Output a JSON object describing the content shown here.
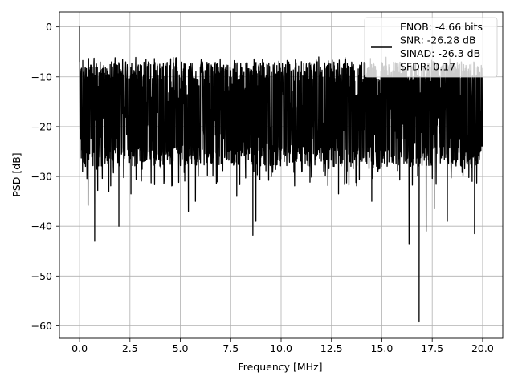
{
  "chart_data": {
    "type": "line",
    "title": "",
    "xlabel": "Frequency [MHz]",
    "ylabel": "PSD [dB]",
    "xlim": [
      -1.0,
      21.0
    ],
    "ylim": [
      -62.5,
      3.0
    ],
    "xticks": [
      0.0,
      2.5,
      5.0,
      7.5,
      10.0,
      12.5,
      15.0,
      17.5,
      20.0
    ],
    "xtick_labels": [
      "0.0",
      "2.5",
      "5.0",
      "7.5",
      "10.0",
      "12.5",
      "15.0",
      "17.5",
      "20.0"
    ],
    "yticks": [
      0,
      -10,
      -20,
      -30,
      -40,
      -50,
      -60
    ],
    "ytick_labels": [
      "0",
      "−10",
      "−20",
      "−30",
      "−40",
      "−50",
      "−60"
    ],
    "grid": true,
    "legend_position": "top-right",
    "color": "#000000",
    "legend": {
      "lines": [
        "ENOB: -4.66 bits",
        "SNR: -26.28 dB",
        "SINAD: -26.3 dB",
        "SFDR: 0.17"
      ]
    },
    "series": [
      {
        "style": "noise-like PSD trace (dense)",
        "band_center_db": -17,
        "band_low_db": -26,
        "band_high_db": -8,
        "points": [
          {
            "x": 0.0,
            "y": 0.0
          },
          {
            "x": 0.12,
            "y": -24.0
          },
          {
            "x": 0.25,
            "y": -27.5
          },
          {
            "x": 0.42,
            "y": -35.8
          },
          {
            "x": 0.75,
            "y": -43.0
          },
          {
            "x": 0.9,
            "y": -32.8
          },
          {
            "x": 1.45,
            "y": -33.0
          },
          {
            "x": 1.95,
            "y": -40.0
          },
          {
            "x": 2.55,
            "y": -33.5
          },
          {
            "x": 4.6,
            "y": -31.8
          },
          {
            "x": 5.4,
            "y": -37.0
          },
          {
            "x": 5.75,
            "y": -35.0
          },
          {
            "x": 7.8,
            "y": -34.0
          },
          {
            "x": 8.6,
            "y": -41.8
          },
          {
            "x": 8.75,
            "y": -39.0
          },
          {
            "x": 12.85,
            "y": -33.5
          },
          {
            "x": 14.5,
            "y": -35.0
          },
          {
            "x": 16.35,
            "y": -43.5
          },
          {
            "x": 16.85,
            "y": -59.2
          },
          {
            "x": 17.2,
            "y": -41.0
          },
          {
            "x": 17.6,
            "y": -36.5
          },
          {
            "x": 18.25,
            "y": -39.0
          },
          {
            "x": 19.6,
            "y": -41.5
          },
          {
            "x": 20.0,
            "y": -24.0
          }
        ]
      }
    ]
  }
}
